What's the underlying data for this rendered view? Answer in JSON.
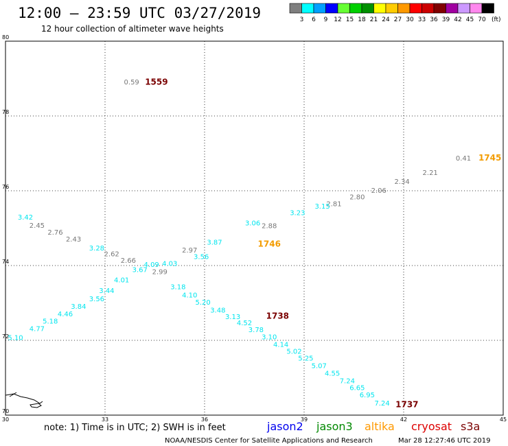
{
  "header": {
    "title": "12:00 – 23:59 UTC 03/27/2019",
    "subtitle": "12 hour collection of altimeter wave heights"
  },
  "colorbar": {
    "bins": [
      {
        "color": "#7f7f7f",
        "label": "3"
      },
      {
        "color": "#00ffff",
        "label": "6"
      },
      {
        "color": "#00a0ff",
        "label": "9"
      },
      {
        "color": "#0000ff",
        "label": "12"
      },
      {
        "color": "#66ff33",
        "label": "15"
      },
      {
        "color": "#00d000",
        "label": "18"
      },
      {
        "color": "#009000",
        "label": "21"
      },
      {
        "color": "#ffff00",
        "label": "24"
      },
      {
        "color": "#ffcc00",
        "label": "27"
      },
      {
        "color": "#ff9900",
        "label": "30"
      },
      {
        "color": "#ff0000",
        "label": "33"
      },
      {
        "color": "#cc0000",
        "label": "36"
      },
      {
        "color": "#800000",
        "label": "39"
      },
      {
        "color": "#a000a0",
        "label": "42"
      },
      {
        "color": "#cc99ff",
        "label": "45"
      },
      {
        "color": "#ff88ee",
        "label": "70"
      },
      {
        "color": "#000000",
        "label": ""
      }
    ],
    "unit": "(ft)"
  },
  "chart_data": {
    "type": "scatter",
    "xlim": [
      30,
      45
    ],
    "ylim": [
      70,
      80
    ],
    "xticks": [
      "30",
      "33",
      "36",
      "39",
      "42",
      "45"
    ],
    "yticks": [
      "70",
      "72",
      "74",
      "76",
      "78",
      "80"
    ],
    "grid": true,
    "colors": {
      "grey": "#777777",
      "cyan": "#00e5ee",
      "orange": "#f39c00",
      "maroon": "#7a0000"
    },
    "series": [
      {
        "name": "cryosat",
        "color": "grey",
        "points": [
          {
            "x": 30.95,
            "y": 75.08,
            "v": "2.45"
          },
          {
            "x": 31.5,
            "y": 74.9,
            "v": "2.76"
          },
          {
            "x": 32.05,
            "y": 74.72,
            "v": "2.43"
          },
          {
            "x": 33.2,
            "y": 74.32,
            "v": "2.62"
          },
          {
            "x": 33.7,
            "y": 74.15,
            "v": "2.66"
          },
          {
            "x": 34.65,
            "y": 73.84,
            "v": "2.99"
          },
          {
            "x": 35.55,
            "y": 74.42,
            "v": "2.97"
          },
          {
            "x": 37.95,
            "y": 75.07,
            "v": "2.88"
          },
          {
            "x": 39.9,
            "y": 75.66,
            "v": "2.81"
          },
          {
            "x": 40.6,
            "y": 75.84,
            "v": "2.80"
          },
          {
            "x": 41.25,
            "y": 76.02,
            "v": "2.06"
          },
          {
            "x": 41.95,
            "y": 76.26,
            "v": "2.34"
          },
          {
            "x": 42.8,
            "y": 76.5,
            "v": "2.21"
          },
          {
            "x": 43.8,
            "y": 76.88,
            "v": "0.41"
          },
          {
            "x": 33.8,
            "y": 78.92,
            "v": "0.59"
          }
        ]
      },
      {
        "name": "jason3",
        "color": "cyan",
        "points": [
          {
            "x": 30.6,
            "y": 75.3,
            "v": "3.42"
          },
          {
            "x": 32.75,
            "y": 74.48,
            "v": "3.28"
          },
          {
            "x": 34.05,
            "y": 73.9,
            "v": "3.67"
          },
          {
            "x": 34.4,
            "y": 74.04,
            "v": "4.09"
          },
          {
            "x": 34.95,
            "y": 74.06,
            "v": "4.03"
          },
          {
            "x": 35.9,
            "y": 74.25,
            "v": "3.56"
          },
          {
            "x": 36.3,
            "y": 74.63,
            "v": "3.87"
          },
          {
            "x": 37.45,
            "y": 75.15,
            "v": "3.06"
          },
          {
            "x": 38.8,
            "y": 75.42,
            "v": "3.23"
          },
          {
            "x": 39.55,
            "y": 75.6,
            "v": "3.15"
          },
          {
            "x": 30.3,
            "y": 72.08,
            "v": "5.10"
          },
          {
            "x": 30.95,
            "y": 72.32,
            "v": "4.77"
          },
          {
            "x": 31.35,
            "y": 72.52,
            "v": "5.18"
          },
          {
            "x": 31.8,
            "y": 72.72,
            "v": "4.46"
          },
          {
            "x": 32.2,
            "y": 72.92,
            "v": "3.84"
          },
          {
            "x": 32.75,
            "y": 73.12,
            "v": "3.56"
          },
          {
            "x": 33.05,
            "y": 73.34,
            "v": "3.44"
          },
          {
            "x": 33.5,
            "y": 73.62,
            "v": "4.01"
          },
          {
            "x": 35.2,
            "y": 73.44,
            "v": "3.18"
          },
          {
            "x": 35.55,
            "y": 73.22,
            "v": "4.10"
          },
          {
            "x": 35.95,
            "y": 73.03,
            "v": "5.20"
          },
          {
            "x": 36.4,
            "y": 72.82,
            "v": "3.48"
          },
          {
            "x": 36.85,
            "y": 72.64,
            "v": "3.13"
          },
          {
            "x": 37.2,
            "y": 72.48,
            "v": "4.52"
          },
          {
            "x": 37.55,
            "y": 72.29,
            "v": "3.78"
          },
          {
            "x": 37.95,
            "y": 72.1,
            "v": "3.10"
          },
          {
            "x": 38.3,
            "y": 71.9,
            "v": "4.14"
          },
          {
            "x": 38.7,
            "y": 71.72,
            "v": "5.02"
          },
          {
            "x": 39.05,
            "y": 71.53,
            "v": "5.25"
          },
          {
            "x": 39.45,
            "y": 71.33,
            "v": "5.07"
          },
          {
            "x": 39.85,
            "y": 71.13,
            "v": "4.55"
          },
          {
            "x": 40.3,
            "y": 70.93,
            "v": "7.24"
          },
          {
            "x": 40.6,
            "y": 70.74,
            "v": "6.65"
          },
          {
            "x": 40.9,
            "y": 70.55,
            "v": "6.95"
          },
          {
            "x": 41.35,
            "y": 70.33,
            "v": "7.24"
          }
        ]
      }
    ],
    "time_labels": [
      {
        "text": "1559",
        "x": 34.55,
        "y": 78.91,
        "color": "maroon"
      },
      {
        "text": "1745",
        "x": 44.6,
        "y": 76.88,
        "color": "orange"
      },
      {
        "text": "1746",
        "x": 37.95,
        "y": 74.58,
        "color": "orange"
      },
      {
        "text": "1738",
        "x": 38.2,
        "y": 72.65,
        "color": "maroon"
      },
      {
        "text": "1737",
        "x": 42.1,
        "y": 70.28,
        "color": "maroon"
      }
    ]
  },
  "footer": {
    "note": "note:  1) Time is in UTC;  2) SWH is in feet",
    "satellites": [
      {
        "name": "jason2",
        "color": "#0000ee"
      },
      {
        "name": "jason3",
        "color": "#008800"
      },
      {
        "name": "altika",
        "color": "#ff9900"
      },
      {
        "name": "cryosat",
        "color": "#dd0000"
      },
      {
        "name": "s3a",
        "color": "#7a0000"
      }
    ],
    "credit": "NOAA/NESDIS Center for Satellite Applications and Research",
    "timestamp": "Mar 28 12:27:46 UTC 2019"
  }
}
